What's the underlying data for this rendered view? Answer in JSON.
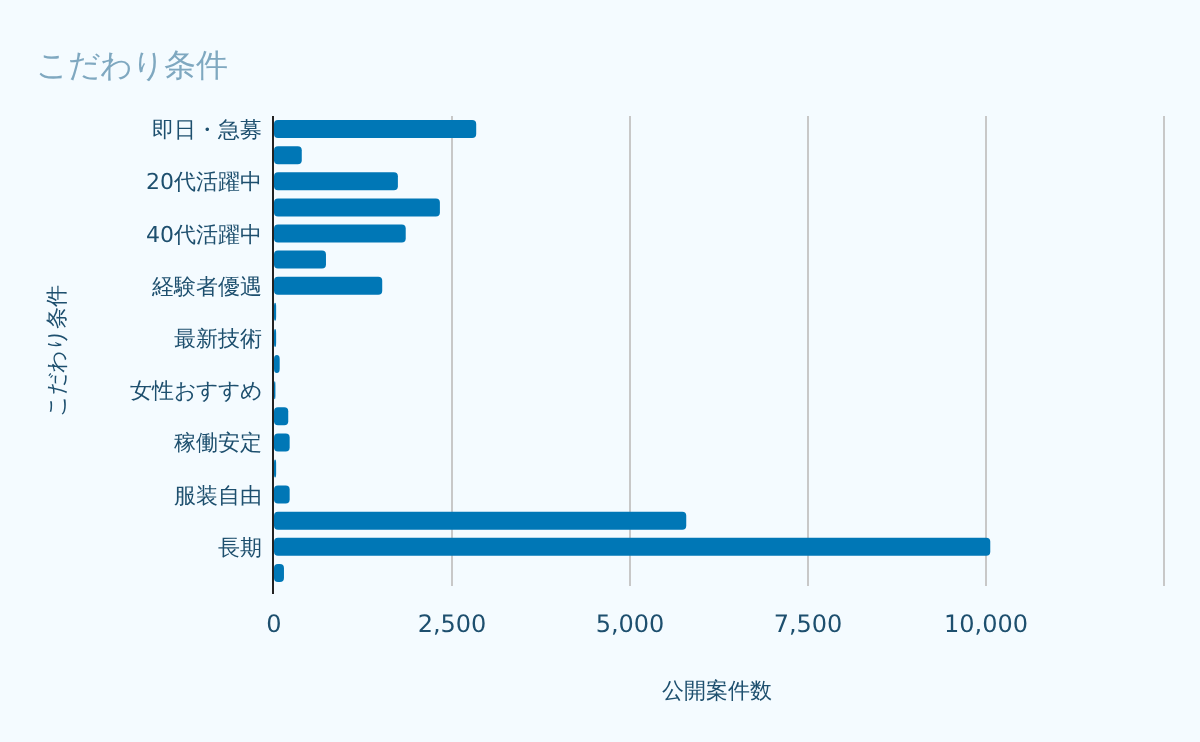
{
  "chart_data": {
    "type": "bar",
    "orientation": "horizontal",
    "title": "こだわり条件",
    "xlabel": "公開案件数",
    "ylabel": "こだわり条件",
    "categories": [
      "即日・急募",
      null,
      "20代活躍中",
      null,
      "40代活躍中",
      null,
      "経験者優遇",
      null,
      "最新技術",
      null,
      "女性おすすめ",
      null,
      "稼働安定",
      null,
      "服装自由",
      null,
      "長期",
      null
    ],
    "values": [
      2840,
      390,
      1740,
      2330,
      1850,
      730,
      1520,
      30,
      30,
      80,
      20,
      200,
      220,
      30,
      220,
      5790,
      10060,
      140
    ],
    "color": "#0077b6",
    "xlim": [
      0,
      12500
    ],
    "xticks": [
      {
        "value": 0,
        "label": "0"
      },
      {
        "value": 2500,
        "label": "2,500"
      },
      {
        "value": 5000,
        "label": "5,000"
      },
      {
        "value": 7500,
        "label": "7,500"
      },
      {
        "value": 10000,
        "label": "10,000"
      },
      {
        "value": 12500,
        "label": null
      }
    ],
    "grid": "x"
  }
}
